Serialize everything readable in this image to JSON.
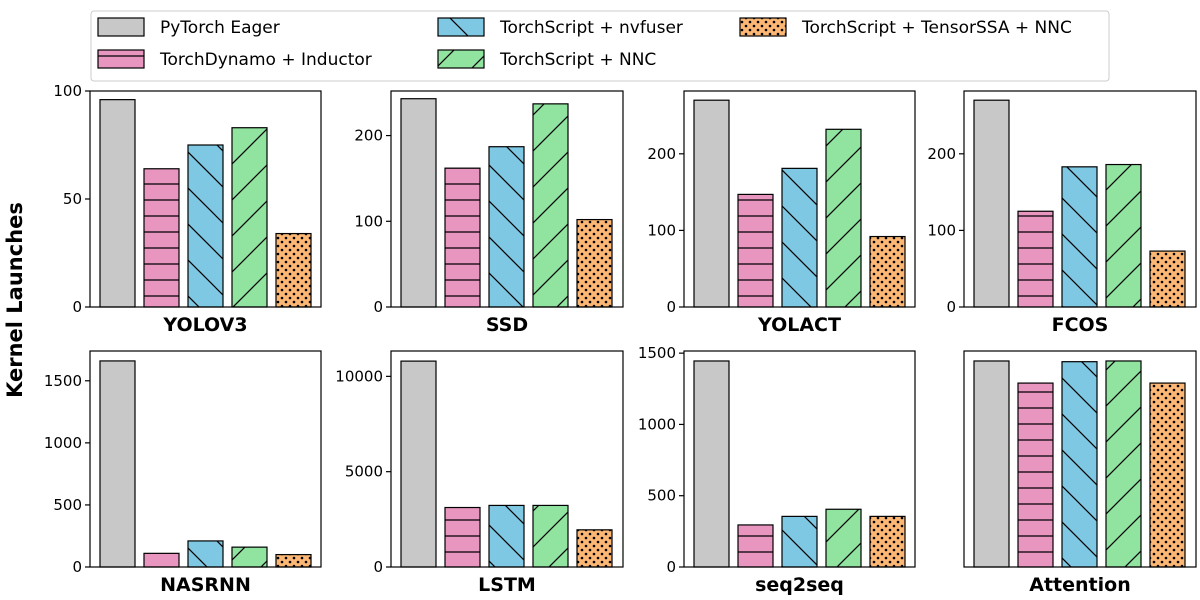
{
  "chart_data": {
    "type": "bar",
    "ylabel": "Kernel Launches",
    "series": [
      {
        "name": "PyTorch Eager",
        "color": "#c8c8c8",
        "hatch": "none"
      },
      {
        "name": "TorchDynamo + Inductor",
        "color": "#e896bf",
        "hatch": "horizontal"
      },
      {
        "name": "TorchScript + nvfuser",
        "color": "#7ec8e3",
        "hatch": "backslash"
      },
      {
        "name": "TorchScript + NNC",
        "color": "#90e4a0",
        "hatch": "slash"
      },
      {
        "name": "TorchScript + TensorSSA + NNC",
        "color": "#fbb773",
        "hatch": "dots"
      }
    ],
    "legend_position": "top",
    "panels": [
      {
        "title": "YOLOV3",
        "values": [
          96,
          64,
          75,
          83,
          34
        ],
        "ylim": [
          0,
          100
        ],
        "yticks": [
          0,
          50,
          100
        ]
      },
      {
        "title": "SSD",
        "values": [
          243,
          162,
          187,
          237,
          102
        ],
        "ylim": [
          0,
          252
        ],
        "yticks": [
          0,
          100,
          200
        ]
      },
      {
        "title": "YOLACT",
        "values": [
          270,
          147,
          181,
          232,
          92
        ],
        "ylim": [
          0,
          282
        ],
        "yticks": [
          0,
          100,
          200
        ]
      },
      {
        "title": "FCOS",
        "values": [
          270,
          125,
          183,
          186,
          73
        ],
        "ylim": [
          0,
          282
        ],
        "yticks": [
          0,
          100,
          200
        ]
      },
      {
        "title": "NASRNN",
        "values": [
          1660,
          110,
          210,
          160,
          100
        ],
        "ylim": [
          0,
          1740
        ],
        "yticks": [
          0,
          500,
          1000,
          1500
        ]
      },
      {
        "title": "LSTM",
        "values": [
          10800,
          3120,
          3230,
          3230,
          1950
        ],
        "ylim": [
          0,
          11330
        ],
        "yticks": [
          0,
          5000,
          10000
        ]
      },
      {
        "title": "seq2seq",
        "values": [
          1445,
          295,
          355,
          405,
          355
        ],
        "ylim": [
          0,
          1515
        ],
        "yticks": [
          0,
          500,
          1000,
          1500
        ]
      },
      {
        "title": "Attention",
        "values": [
          1445,
          1290,
          1440,
          1445,
          1290
        ],
        "ylim": [
          0,
          1515
        ],
        "yticks": []
      }
    ]
  }
}
